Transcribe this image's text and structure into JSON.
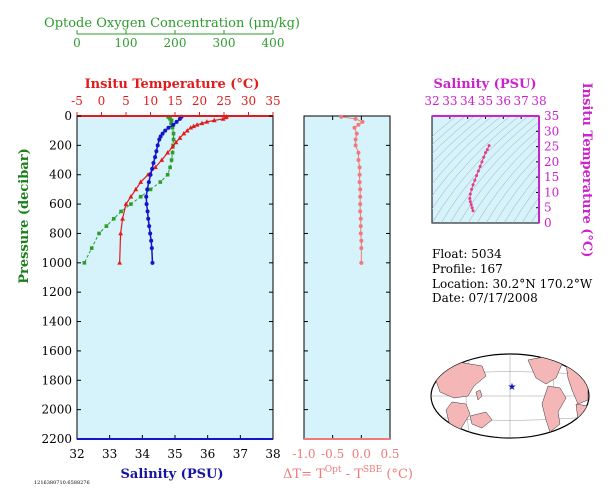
{
  "colors": {
    "oxygen": "#2e9b2e",
    "temperature": "#e11b1b",
    "salinity": "#1414c8",
    "pressure_label": "#1a7f1a",
    "delta": "#f07a7a",
    "ts_axis": "#cc22cc",
    "panel_bg": "#d6f2fa",
    "land": "#f4b6b6"
  },
  "texts": {
    "oxygen_title": "Optode Oxygen Concentration (μm/kg)",
    "temperature_title": "Insitu Temperature (°C)",
    "salinity_bottom_title": "Salinity (PSU)",
    "pressure_title": "Pressure (decibar)",
    "delta_title": "ΔT= T",
    "delta_sup1": "Opt",
    "delta_mid": " - T",
    "delta_sup2": "SBE",
    "delta_end": " (°C)",
    "ts_top_title": "Salinity (PSU)",
    "ts_right_title": "Insitu Temperature (°C)",
    "footer_id": "1216380710.6588276"
  },
  "info": {
    "float": "Float:  5034",
    "profile": "Profile:  167",
    "location": "Location:  30.2°N  170.2°W",
    "date": "Date:  07/17/2008"
  },
  "chart_data": [
    {
      "type": "line",
      "title": "",
      "ylabel": "Pressure (decibar)",
      "ylim": [
        2200,
        0
      ],
      "y_ticks": [
        "0",
        "200",
        "400",
        "600",
        "800",
        "1000",
        "1200",
        "1400",
        "1600",
        "1800",
        "2000",
        "2200"
      ],
      "axes": {
        "oxygen": {
          "label": "Optode Oxygen Concentration (μm/kg)",
          "lim": [
            0,
            400
          ],
          "ticks": [
            "0",
            "100",
            "200",
            "300",
            "400"
          ]
        },
        "temperature": {
          "label": "Insitu Temperature (°C)",
          "lim": [
            -5,
            35
          ],
          "ticks": [
            "-5",
            "0",
            "5",
            "10",
            "15",
            "20",
            "25",
            "30",
            "35"
          ]
        },
        "salinity": {
          "label": "Salinity (PSU)",
          "lim": [
            32,
            38
          ],
          "ticks": [
            "32",
            "33",
            "34",
            "35",
            "36",
            "37",
            "38"
          ]
        }
      },
      "series": [
        {
          "name": "Optode Oxygen Concentration (μm/kg)",
          "axis": "oxygen",
          "x": [
            186,
            188,
            190,
            193,
            192,
            195,
            197,
            197,
            196,
            195,
            193,
            190,
            185,
            170,
            150,
            130,
            110,
            90,
            75,
            60,
            45,
            30,
            15
          ],
          "y": [
            5,
            10,
            20,
            30,
            50,
            80,
            120,
            160,
            200,
            250,
            300,
            350,
            400,
            450,
            500,
            550,
            600,
            650,
            700,
            750,
            800,
            900,
            1000
          ]
        },
        {
          "name": "Insitu Temperature (°C)",
          "axis": "temperature",
          "x": [
            25.5,
            25.3,
            24.8,
            23,
            21.5,
            20.5,
            19.5,
            18.8,
            18.2,
            17.5,
            16.8,
            16,
            15.2,
            14.5,
            13.5,
            12.3,
            11,
            9.5,
            8,
            7,
            6,
            5,
            4.3,
            3.9,
            3.7
          ],
          "y": [
            5,
            10,
            20,
            30,
            40,
            50,
            60,
            70,
            80,
            100,
            120,
            150,
            180,
            210,
            250,
            300,
            350,
            400,
            450,
            500,
            550,
            600,
            700,
            800,
            1000
          ]
        },
        {
          "name": "Salinity (PSU)",
          "axis": "salinity",
          "x": [
            35.2,
            35.15,
            35.05,
            34.95,
            34.8,
            34.7,
            34.62,
            34.56,
            34.52,
            34.47,
            34.43,
            34.39,
            34.34,
            34.3,
            34.25,
            34.2,
            34.15,
            34.12,
            34.13,
            34.16,
            34.18,
            34.21,
            34.24,
            34.27,
            34.29,
            34.31
          ],
          "y": [
            5,
            20,
            40,
            60,
            80,
            100,
            120,
            140,
            160,
            200,
            240,
            280,
            320,
            360,
            400,
            450,
            500,
            550,
            600,
            650,
            700,
            750,
            800,
            850,
            900,
            1000
          ]
        }
      ]
    },
    {
      "type": "scatter",
      "title": "",
      "xlabel": "ΔT= TOpt - TSBE (°C)",
      "xlim": [
        -1.0,
        0.5
      ],
      "ylim": [
        2200,
        0
      ],
      "x_ticks": [
        "-1.0",
        "-0.5",
        "0.0",
        "0.5"
      ],
      "series": [
        {
          "name": "ΔT",
          "x": [
            -0.35,
            -0.1,
            0.02,
            -0.05,
            -0.12,
            -0.08,
            -0.1,
            -0.1,
            -0.05,
            -0.05,
            -0.03,
            -0.03,
            -0.03,
            -0.02,
            -0.02,
            -0.02,
            -0.02,
            -0.01,
            -0.01,
            -0.01,
            0,
            0,
            0
          ],
          "y": [
            5,
            20,
            40,
            60,
            80,
            120,
            160,
            200,
            250,
            300,
            350,
            400,
            450,
            500,
            550,
            600,
            650,
            700,
            750,
            800,
            850,
            900,
            1000
          ]
        }
      ]
    },
    {
      "type": "line",
      "title": "",
      "xlabel": "Salinity (PSU)",
      "ylabel": "Insitu Temperature (°C)",
      "xlim": [
        32,
        38
      ],
      "ylim": [
        0,
        35
      ],
      "x_ticks": [
        "32",
        "33",
        "34",
        "35",
        "36",
        "37",
        "38"
      ],
      "y_ticks": [
        "0",
        "5",
        "10",
        "15",
        "20",
        "25",
        "30",
        "35"
      ],
      "series": [
        {
          "name": "T-S",
          "x": [
            35.2,
            35.1,
            35.0,
            34.9,
            34.8,
            34.7,
            34.6,
            34.5,
            34.4,
            34.3,
            34.22,
            34.15,
            34.12,
            34.15,
            34.2,
            34.25,
            34.3
          ],
          "y": [
            25.3,
            24,
            23,
            21.5,
            20,
            18.5,
            17,
            15.5,
            14,
            12.5,
            11,
            9.5,
            8,
            7,
            6,
            5,
            4
          ]
        }
      ]
    }
  ]
}
